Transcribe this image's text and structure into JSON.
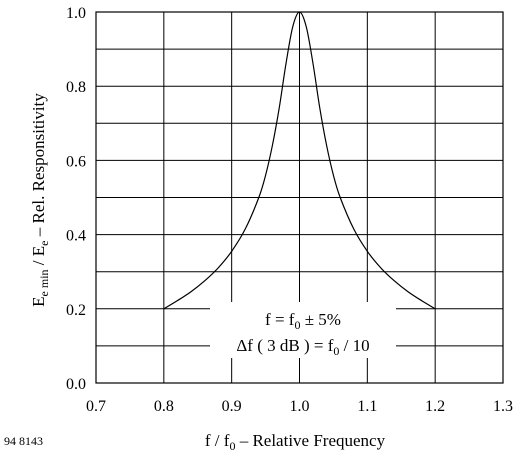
{
  "figure_id": "94 8143",
  "chart_data": {
    "type": "line",
    "xlabel": "f / f0 – Relative Frequency",
    "ylabel": "Ee min / Ee – Rel. Responsitivity",
    "xlim": [
      0.7,
      1.3
    ],
    "ylim": [
      0.0,
      1.0
    ],
    "x_ticks": [
      "0.7",
      "0.8",
      "0.9",
      "1.0",
      "1.1",
      "1.2",
      "1.3"
    ],
    "y_ticks": [
      "0.0",
      "0.2",
      "0.4",
      "0.6",
      "0.8",
      "1.0"
    ],
    "grid": true,
    "series": [
      {
        "x": [
          0.8,
          0.82,
          0.84,
          0.86,
          0.88,
          0.9,
          0.92,
          0.94,
          0.95,
          0.96,
          0.97,
          0.98,
          0.99,
          1.0,
          1.01,
          1.02,
          1.03,
          1.04,
          1.05,
          1.06,
          1.08,
          1.1,
          1.12,
          1.14,
          1.16,
          1.18,
          1.2
        ],
        "y": [
          0.2,
          0.222,
          0.246,
          0.275,
          0.31,
          0.355,
          0.415,
          0.5,
          0.56,
          0.64,
          0.74,
          0.86,
          0.96,
          1.0,
          0.96,
          0.86,
          0.74,
          0.64,
          0.56,
          0.5,
          0.415,
          0.355,
          0.31,
          0.275,
          0.246,
          0.222,
          0.2
        ]
      }
    ],
    "annotations": [
      {
        "text": "f = f0 ± 5%"
      },
      {
        "text": "Δf ( 3 dB ) = f0 / 10"
      }
    ]
  }
}
